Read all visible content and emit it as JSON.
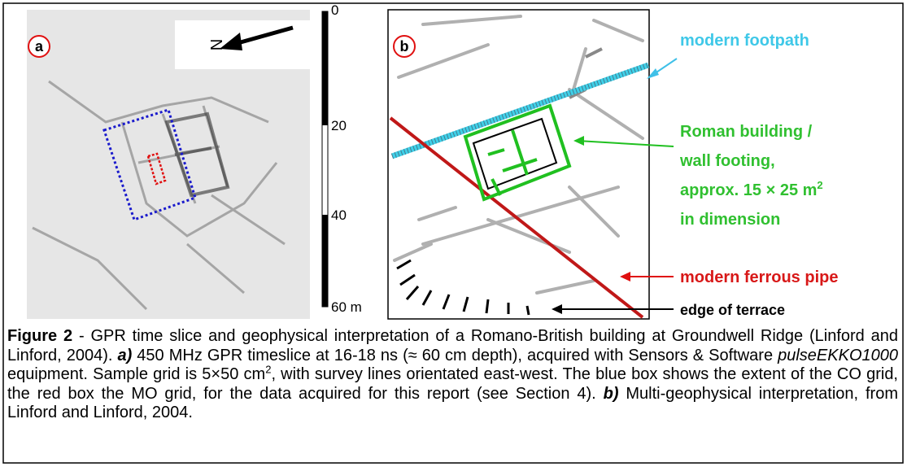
{
  "figure": {
    "panel_a": {
      "label": "a",
      "north": "N",
      "scale": [
        "0",
        "20",
        "40",
        "60 m"
      ]
    },
    "panel_b": {
      "label": "b"
    },
    "annotations": {
      "footpath": "modern footpath",
      "building": [
        "Roman building /",
        "wall footing,",
        "approx. 15 × 25 m",
        "in dimension"
      ],
      "building_sup": "2",
      "pipe": "modern ferrous pipe",
      "terrace": "edge of terrace"
    }
  },
  "caption": {
    "segments": [
      {
        "text": "Figure 2",
        "style": "bold"
      },
      {
        "text": " - GPR time slice and geophysical interpretation of a Romano-British building at Groundwell Ridge (Linford and Linford, 2004). ",
        "style": "plain"
      },
      {
        "text": "a)",
        "style": "bold-italic"
      },
      {
        "text": " 450 MHz GPR timeslice at 16-18 ns (≈ 60 cm depth), acquired with Sensors & Software ",
        "style": "plain"
      },
      {
        "text": "pulseEKKO1000",
        "style": "italic"
      },
      {
        "text": " equipment. Sample grid is 5×50 cm",
        "style": "plain"
      },
      {
        "text": "2",
        "style": "sup"
      },
      {
        "text": ", with survey lines orientated east-west. The blue box shows the extent of the CO grid, the red box the MO grid, for the data acquired for this report (see Section 4). ",
        "style": "plain"
      },
      {
        "text": "b)",
        "style": "bold-italic"
      },
      {
        "text": " Multi-geophysical interpretation, from Linford and Linford, 2004.",
        "style": "plain"
      }
    ]
  }
}
